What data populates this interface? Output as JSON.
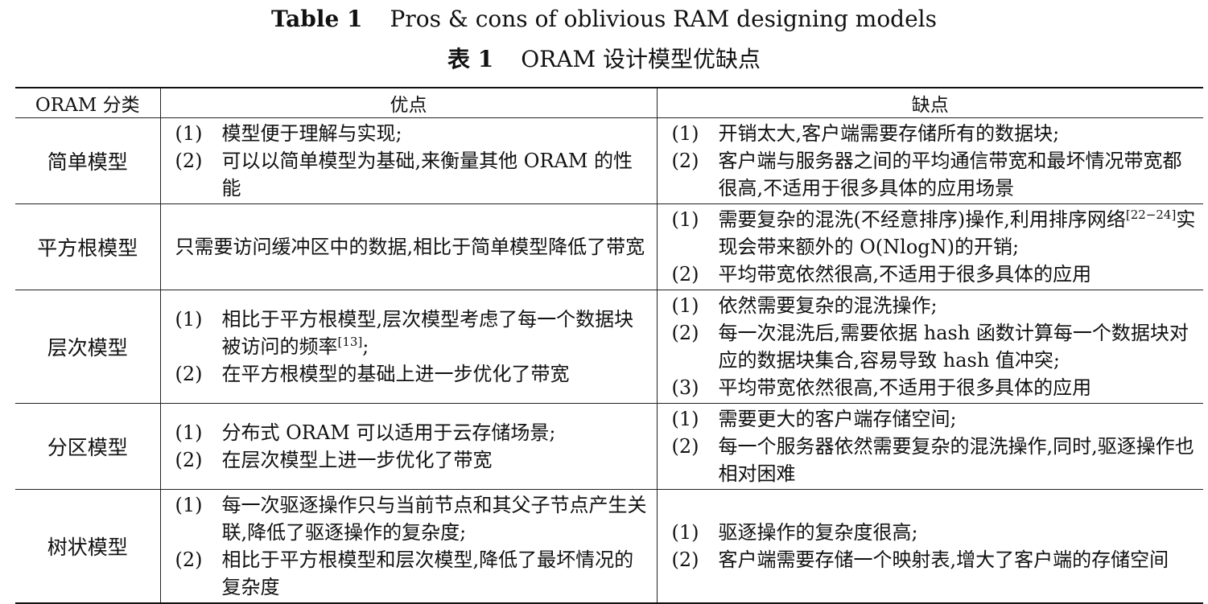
{
  "caption": {
    "en_label": "Table 1",
    "en_title": "Pros & cons of oblivious RAM designing models",
    "zh_label": "表 1",
    "zh_title": "ORAM 设计模型优缺点"
  },
  "table": {
    "headers": [
      "ORAM 分类",
      "优点",
      "缺点"
    ],
    "rows": [
      {
        "category": "简单模型",
        "pros": [
          {
            "n": "(1)",
            "t": "模型便于理解与实现;"
          },
          {
            "n": "(2)",
            "t": "可以以简单模型为基础,来衡量其他 ORAM 的性能"
          }
        ],
        "cons": [
          {
            "n": "(1)",
            "t": "开销太大,客户端需要存储所有的数据块;"
          },
          {
            "n": "(2)",
            "t": "客户端与服务器之间的平均通信带宽和最坏情况带宽都很高,不适用于很多具体的应用场景"
          }
        ]
      },
      {
        "category": "平方根模型",
        "pros_text": "只需要访问缓冲区中的数据,相比于简单模型降低了带宽",
        "cons": [
          {
            "n": "(1)",
            "t_a": "需要复杂的混洗(不经意排序)操作,利用排序网络",
            "sup": "[22−24]",
            "t_b": "实现会带来额外的 O(NlogN)的开销;"
          },
          {
            "n": "(2)",
            "t": "平均带宽依然很高,不适用于很多具体的应用"
          }
        ]
      },
      {
        "category": "层次模型",
        "pros": [
          {
            "n": "(1)",
            "t_a": "相比于平方根模型,层次模型考虑了每一个数据块被访问的频率",
            "sup": "[13]",
            "t_b": ";"
          },
          {
            "n": "(2)",
            "t": "在平方根模型的基础上进一步优化了带宽"
          }
        ],
        "cons": [
          {
            "n": "(1)",
            "t": "依然需要复杂的混洗操作;"
          },
          {
            "n": "(2)",
            "t": "每一次混洗后,需要依据 hash 函数计算每一个数据块对应的数据块集合,容易导致 hash 值冲突;"
          },
          {
            "n": "(3)",
            "t": "平均带宽依然很高,不适用于很多具体的应用"
          }
        ]
      },
      {
        "category": "分区模型",
        "pros": [
          {
            "n": "(1)",
            "t": "分布式 ORAM 可以适用于云存储场景;"
          },
          {
            "n": "(2)",
            "t": "在层次模型上进一步优化了带宽"
          }
        ],
        "cons": [
          {
            "n": "(1)",
            "t": "需要更大的客户端存储空间;"
          },
          {
            "n": "(2)",
            "t": "每一个服务器依然需要复杂的混洗操作,同时,驱逐操作也相对困难"
          }
        ]
      },
      {
        "category": "树状模型",
        "pros": [
          {
            "n": "(1)",
            "t": "每一次驱逐操作只与当前节点和其父子节点产生关联,降低了驱逐操作的复杂度;"
          },
          {
            "n": "(2)",
            "t": "相比于平方根模型和层次模型,降低了最坏情况的复杂度"
          }
        ],
        "cons": [
          {
            "n": "(1)",
            "t": "驱逐操作的复杂度很高;"
          },
          {
            "n": "(2)",
            "t": "客户端需要存储一个映射表,增大了客户端的存储空间"
          }
        ]
      }
    ]
  }
}
